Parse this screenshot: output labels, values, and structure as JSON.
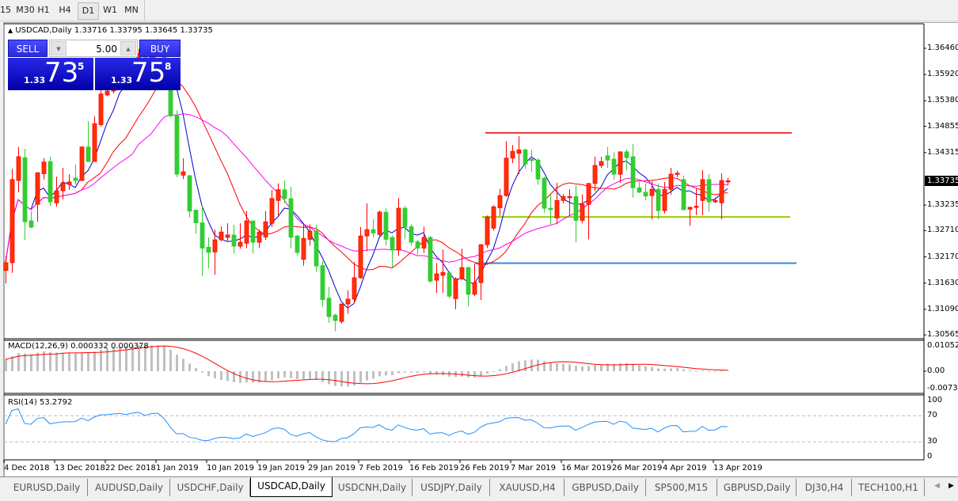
{
  "toolbar": {
    "timeframes": [
      {
        "label": "15",
        "active": false
      },
      {
        "label": "M30",
        "active": false
      },
      {
        "label": "H1",
        "active": false
      },
      {
        "label": "H4",
        "active": false
      },
      {
        "label": "D1",
        "active": true
      },
      {
        "label": "W1",
        "active": false
      },
      {
        "label": "MN",
        "active": false
      }
    ]
  },
  "chart": {
    "symbol_header": "USDCAD,Daily",
    "ohlc_header": "1.33716 1.33795 1.33645 1.33735",
    "current_price": "1.33735",
    "price_axis": [
      "1.36460",
      "1.35920",
      "1.35380",
      "1.34855",
      "1.34315",
      "1.33235",
      "1.32710",
      "1.32170",
      "1.31630",
      "1.31090",
      "1.30565"
    ],
    "colors": {
      "bull": "#ff3300",
      "bear": "#32cd32",
      "ma_fast": "#0000cc",
      "ma_mid": "#ff0000",
      "ma_slow": "#ff00ff"
    },
    "horizontal_levels": [
      {
        "price": 1.3472,
        "color": "#ee3333"
      },
      {
        "price": 1.3299,
        "color": "#99cc00"
      },
      {
        "price": 1.3204,
        "color": "#3388dd"
      }
    ],
    "date_labels": [
      {
        "bar": 0,
        "label": "4 Dec 2018"
      },
      {
        "bar": 8,
        "label": "13 Dec 2018"
      },
      {
        "bar": 16,
        "label": "22 Dec 2018"
      },
      {
        "bar": 24,
        "label": "1 Jan 2019"
      },
      {
        "bar": 32,
        "label": "10 Jan 2019"
      },
      {
        "bar": 40,
        "label": "19 Jan 2019"
      },
      {
        "bar": 48,
        "label": "29 Jan 2019"
      },
      {
        "bar": 56,
        "label": "7 Feb 2019"
      },
      {
        "bar": 64,
        "label": "16 Feb 2019"
      },
      {
        "bar": 72,
        "label": "26 Feb 2019"
      },
      {
        "bar": 80,
        "label": "7 Mar 2019"
      },
      {
        "bar": 88,
        "label": "16 Mar 2019"
      },
      {
        "bar": 96,
        "label": "26 Mar 2019"
      },
      {
        "bar": 104,
        "label": "4 Apr 2019"
      },
      {
        "bar": 112,
        "label": "13 Apr 2019"
      }
    ],
    "candles_ohlc": [
      [
        1.3189,
        1.3218,
        1.3162,
        1.3205
      ],
      [
        1.3205,
        1.3398,
        1.3184,
        1.3376
      ],
      [
        1.3374,
        1.3443,
        1.335,
        1.3423
      ],
      [
        1.3421,
        1.3439,
        1.3252,
        1.3289
      ],
      [
        1.3291,
        1.3311,
        1.3276,
        1.3278
      ],
      [
        1.3325,
        1.3391,
        1.3289,
        1.339
      ],
      [
        1.3388,
        1.342,
        1.3376,
        1.3412
      ],
      [
        1.3413,
        1.3423,
        1.3322,
        1.333
      ],
      [
        1.3328,
        1.3382,
        1.332,
        1.3353
      ],
      [
        1.3353,
        1.34,
        1.3335,
        1.3369
      ],
      [
        1.3366,
        1.3387,
        1.3355,
        1.3371
      ],
      [
        1.3379,
        1.3407,
        1.3366,
        1.3374
      ],
      [
        1.3374,
        1.3444,
        1.3374,
        1.3443
      ],
      [
        1.3443,
        1.3496,
        1.3413,
        1.3413
      ],
      [
        1.3413,
        1.3506,
        1.3413,
        1.3491
      ],
      [
        1.3489,
        1.3561,
        1.3485,
        1.3552
      ],
      [
        1.355,
        1.3561,
        1.3547,
        1.3558
      ],
      [
        1.3558,
        1.3583,
        1.3553,
        1.3575
      ],
      [
        1.3574,
        1.3599,
        1.357,
        1.3591
      ],
      [
        1.3589,
        1.3596,
        1.3574,
        1.358
      ],
      [
        1.3583,
        1.3622,
        1.3576,
        1.3615
      ],
      [
        1.3612,
        1.3645,
        1.3605,
        1.3635
      ],
      [
        1.3635,
        1.3648,
        1.3599,
        1.3607
      ],
      [
        1.3607,
        1.3661,
        1.3599,
        1.3651
      ],
      [
        1.3648,
        1.3665,
        1.3638,
        1.3661
      ],
      [
        1.3661,
        1.3664,
        1.3608,
        1.3615
      ],
      [
        1.3615,
        1.3618,
        1.3504,
        1.3507
      ],
      [
        1.3507,
        1.3518,
        1.3381,
        1.3387
      ],
      [
        1.3385,
        1.342,
        1.3377,
        1.3392
      ],
      [
        1.3384,
        1.3386,
        1.3298,
        1.3311
      ],
      [
        1.3313,
        1.3314,
        1.3265,
        1.3287
      ],
      [
        1.3287,
        1.3321,
        1.3177,
        1.3235
      ],
      [
        1.3237,
        1.3257,
        1.3193,
        1.3226
      ],
      [
        1.3227,
        1.3273,
        1.318,
        1.3252
      ],
      [
        1.3252,
        1.328,
        1.3249,
        1.3268
      ],
      [
        1.3257,
        1.3286,
        1.325,
        1.3262
      ],
      [
        1.3262,
        1.3283,
        1.3224,
        1.3239
      ],
      [
        1.3239,
        1.3286,
        1.3234,
        1.3247
      ],
      [
        1.3245,
        1.3311,
        1.3235,
        1.3291
      ],
      [
        1.3291,
        1.3292,
        1.3224,
        1.3247
      ],
      [
        1.3247,
        1.3273,
        1.3235,
        1.3268
      ],
      [
        1.3258,
        1.3311,
        1.3252,
        1.3289
      ],
      [
        1.3286,
        1.3355,
        1.3278,
        1.3337
      ],
      [
        1.3333,
        1.3368,
        1.3302,
        1.3355
      ],
      [
        1.3355,
        1.3374,
        1.3327,
        1.3337
      ],
      [
        1.3337,
        1.3361,
        1.3235,
        1.3257
      ],
      [
        1.326,
        1.3262,
        1.322,
        1.3226
      ],
      [
        1.3212,
        1.3284,
        1.3199,
        1.3255
      ],
      [
        1.3253,
        1.3284,
        1.324,
        1.327
      ],
      [
        1.327,
        1.3283,
        1.3186,
        1.3198
      ],
      [
        1.3199,
        1.3208,
        1.3115,
        1.3129
      ],
      [
        1.3132,
        1.3155,
        1.3081,
        1.3094
      ],
      [
        1.3097,
        1.31,
        1.3064,
        1.3086
      ],
      [
        1.3084,
        1.312,
        1.308,
        1.312
      ],
      [
        1.312,
        1.3148,
        1.31,
        1.313
      ],
      [
        1.313,
        1.3206,
        1.3122,
        1.3174
      ],
      [
        1.3174,
        1.3278,
        1.3172,
        1.326
      ],
      [
        1.326,
        1.3327,
        1.3229,
        1.3273
      ],
      [
        1.3273,
        1.3294,
        1.3257,
        1.3266
      ],
      [
        1.3263,
        1.3312,
        1.3257,
        1.3309
      ],
      [
        1.3309,
        1.3317,
        1.324,
        1.3253
      ],
      [
        1.3257,
        1.3261,
        1.3195,
        1.3231
      ],
      [
        1.3231,
        1.3338,
        1.3219,
        1.3317
      ],
      [
        1.3317,
        1.3322,
        1.3253,
        1.3278
      ],
      [
        1.3279,
        1.3284,
        1.324,
        1.3247
      ],
      [
        1.3248,
        1.3252,
        1.3222,
        1.3235
      ],
      [
        1.3235,
        1.3279,
        1.3225,
        1.3257
      ],
      [
        1.3257,
        1.326,
        1.3164,
        1.3167
      ],
      [
        1.3169,
        1.3204,
        1.3143,
        1.3182
      ],
      [
        1.3179,
        1.3232,
        1.3143,
        1.3185
      ],
      [
        1.3184,
        1.3187,
        1.3132,
        1.3136
      ],
      [
        1.3131,
        1.3175,
        1.3109,
        1.3172
      ],
      [
        1.3172,
        1.3234,
        1.3169,
        1.3195
      ],
      [
        1.3195,
        1.3197,
        1.3115,
        1.314
      ],
      [
        1.314,
        1.3203,
        1.3136,
        1.3164
      ],
      [
        1.3164,
        1.3243,
        1.3128,
        1.3242
      ],
      [
        1.3242,
        1.3302,
        1.3235,
        1.3299
      ],
      [
        1.3276,
        1.3323,
        1.3271,
        1.332
      ],
      [
        1.3318,
        1.3357,
        1.3301,
        1.3343
      ],
      [
        1.3343,
        1.3455,
        1.3341,
        1.342
      ],
      [
        1.342,
        1.3447,
        1.341,
        1.3434
      ],
      [
        1.343,
        1.3465,
        1.3387,
        1.3437
      ],
      [
        1.3437,
        1.344,
        1.3398,
        1.3408
      ],
      [
        1.3418,
        1.3437,
        1.3392,
        1.3415
      ],
      [
        1.3416,
        1.342,
        1.3365,
        1.3377
      ],
      [
        1.3379,
        1.3382,
        1.3308,
        1.3317
      ],
      [
        1.3317,
        1.3346,
        1.3284,
        1.3314
      ],
      [
        1.3297,
        1.3369,
        1.3284,
        1.3333
      ],
      [
        1.3333,
        1.3346,
        1.3327,
        1.3341
      ],
      [
        1.334,
        1.3356,
        1.3301,
        1.3341
      ],
      [
        1.3341,
        1.3364,
        1.3247,
        1.3292
      ],
      [
        1.3292,
        1.3345,
        1.3286,
        1.3325
      ],
      [
        1.3325,
        1.3368,
        1.3253,
        1.3368
      ],
      [
        1.3368,
        1.3423,
        1.3352,
        1.3405
      ],
      [
        1.3405,
        1.3423,
        1.34,
        1.3413
      ],
      [
        1.3425,
        1.3443,
        1.34,
        1.3416
      ],
      [
        1.3418,
        1.3432,
        1.3376,
        1.3387
      ],
      [
        1.3387,
        1.3433,
        1.3369,
        1.3433
      ],
      [
        1.3433,
        1.3438,
        1.3395,
        1.3421
      ],
      [
        1.3423,
        1.3449,
        1.3339,
        1.3359
      ],
      [
        1.3359,
        1.3371,
        1.3348,
        1.335
      ],
      [
        1.335,
        1.3368,
        1.3333,
        1.3342
      ],
      [
        1.3343,
        1.3373,
        1.3294,
        1.3356
      ],
      [
        1.3356,
        1.3368,
        1.3294,
        1.3312
      ],
      [
        1.3312,
        1.3371,
        1.3306,
        1.3356
      ],
      [
        1.3356,
        1.34,
        1.3345,
        1.3387
      ],
      [
        1.3387,
        1.3394,
        1.3381,
        1.3389
      ],
      [
        1.3376,
        1.3384,
        1.3312,
        1.3314
      ],
      [
        1.3315,
        1.3319,
        1.3281,
        1.3319
      ],
      [
        1.332,
        1.3358,
        1.3303,
        1.3321
      ],
      [
        1.3333,
        1.3395,
        1.3303,
        1.3376
      ],
      [
        1.3376,
        1.3387,
        1.331,
        1.333
      ],
      [
        1.333,
        1.3339,
        1.3328,
        1.3333
      ],
      [
        1.3328,
        1.3389,
        1.3294,
        1.3374
      ],
      [
        1.33716,
        1.33795,
        1.33645,
        1.33735
      ]
    ]
  },
  "macd": {
    "label": "MACD(12,26,9) 0.000332 0.000378",
    "axis": [
      "0.010525",
      "0.00",
      "-0.0073"
    ],
    "hist_color": "#c0c0c0",
    "signal_color": "#ff0000"
  },
  "rsi": {
    "label": "RSI(14) 53.2792",
    "axis": [
      "100",
      "70",
      "30",
      "0"
    ],
    "levels": [
      70,
      30
    ],
    "line_color": "#1e90ff"
  },
  "trade_panel": {
    "sell_label": "SELL",
    "buy_label": "BUY",
    "lot_size": "5.00",
    "sell_price": {
      "prefix": "1.33",
      "big": "73",
      "sup": "5"
    },
    "buy_price": {
      "prefix": "1.33",
      "big": "75",
      "sup": "8"
    }
  },
  "tabs": [
    {
      "label": "EURUSD,Daily",
      "active": false
    },
    {
      "label": "AUDUSD,Daily",
      "active": false
    },
    {
      "label": "USDCHF,Daily",
      "active": false
    },
    {
      "label": "USDCAD,Daily",
      "active": true
    },
    {
      "label": "USDCNH,Daily",
      "active": false
    },
    {
      "label": "USDJPY,Daily",
      "active": false
    },
    {
      "label": "XAUUSD,H4",
      "active": false
    },
    {
      "label": "GBPUSD,Daily",
      "active": false
    },
    {
      "label": "SP500,M15",
      "active": false
    },
    {
      "label": "GBPUSD,Daily",
      "active": false
    },
    {
      "label": "DJ30,H4",
      "active": false
    },
    {
      "label": "TECH100,H1",
      "active": false
    }
  ]
}
